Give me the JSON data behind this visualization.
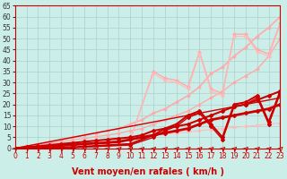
{
  "bg_color": "#cceee8",
  "grid_color": "#aacccc",
  "xlabel": "Vent moyen/en rafales ( km/h )",
  "xlabel_color": "#cc0000",
  "xlabel_fontsize": 7,
  "tick_fontsize": 5.5,
  "x_min": 0,
  "x_max": 23,
  "y_min": 0,
  "y_max": 65,
  "x_ticks": [
    0,
    1,
    2,
    3,
    4,
    5,
    6,
    7,
    8,
    9,
    10,
    11,
    12,
    13,
    14,
    15,
    16,
    17,
    18,
    19,
    20,
    21,
    22,
    23
  ],
  "y_ticks": [
    0,
    5,
    10,
    15,
    20,
    25,
    30,
    35,
    40,
    45,
    50,
    55,
    60,
    65
  ],
  "pink_lines": [
    {
      "x": [
        0,
        1,
        2,
        3,
        4,
        5,
        6,
        7,
        8,
        9,
        10,
        11,
        12,
        13,
        14,
        15,
        16,
        17,
        18,
        19,
        20,
        21,
        22,
        23
      ],
      "y": [
        0,
        0.5,
        1,
        1.5,
        2,
        2.5,
        3,
        3.5,
        4,
        4.5,
        5,
        5.5,
        6,
        6.5,
        7,
        7.5,
        8,
        8.5,
        9,
        9.5,
        10,
        10.5,
        11,
        11.5
      ],
      "color": "#ffbbbb",
      "lw": 0.8
    },
    {
      "x": [
        0,
        1,
        2,
        3,
        4,
        5,
        6,
        7,
        8,
        9,
        10,
        11,
        12,
        13,
        14,
        15,
        16,
        17,
        18,
        19,
        20,
        21,
        22,
        23
      ],
      "y": [
        0,
        0.8,
        1.5,
        2.3,
        3,
        3.8,
        4.5,
        5.3,
        6,
        6.8,
        8,
        9,
        11,
        13,
        15,
        17,
        20,
        23,
        26,
        30,
        33,
        36,
        42,
        50
      ],
      "color": "#ffaaaa",
      "lw": 1.0
    },
    {
      "x": [
        0,
        1,
        2,
        3,
        4,
        5,
        6,
        7,
        8,
        9,
        10,
        11,
        12,
        13,
        14,
        15,
        16,
        17,
        18,
        19,
        20,
        21,
        22,
        23
      ],
      "y": [
        0,
        1,
        2,
        3,
        4,
        5,
        6,
        7,
        8,
        9,
        11,
        13,
        16,
        18,
        21,
        24,
        28,
        34,
        37,
        42,
        46,
        51,
        55,
        60
      ],
      "color": "#ffaaaa",
      "lw": 1.2
    },
    {
      "x": [
        0,
        5,
        10,
        12,
        13,
        14,
        15,
        16,
        17,
        18,
        19,
        20,
        21,
        22,
        23
      ],
      "y": [
        0,
        1.5,
        4,
        35,
        32,
        31,
        28,
        44,
        27,
        25,
        52,
        52,
        45,
        43,
        57
      ],
      "color": "#ffaaaa",
      "lw": 1.0
    },
    {
      "x": [
        0,
        5,
        10,
        12,
        13,
        14,
        15,
        16,
        17,
        18,
        19,
        20,
        21,
        22,
        23
      ],
      "y": [
        0,
        1.5,
        4,
        34,
        31,
        30,
        27,
        43,
        26,
        24,
        51,
        51,
        44,
        42,
        56
      ],
      "color": "#ffbbbb",
      "lw": 0.8
    }
  ],
  "red_lines": [
    {
      "x": [
        0,
        1,
        2,
        3,
        4,
        5,
        6,
        7,
        8,
        9,
        10,
        11,
        12,
        13,
        14,
        15,
        16,
        17,
        18,
        19,
        20,
        21,
        22,
        23
      ],
      "y": [
        0,
        1,
        2,
        3,
        4,
        5,
        6,
        7,
        8,
        9,
        10,
        11,
        12,
        13,
        14,
        15,
        16,
        17,
        18,
        19,
        20,
        21,
        22,
        23
      ],
      "color": "#cc0000",
      "lw": 1.0,
      "marker": false
    },
    {
      "x": [
        0,
        1,
        2,
        3,
        4,
        5,
        6,
        7,
        8,
        9,
        10,
        11,
        12,
        13,
        14,
        15,
        16,
        17,
        18,
        19,
        20,
        21,
        22,
        23
      ],
      "y": [
        0,
        0.5,
        1,
        1.5,
        2,
        2.5,
        3,
        3.5,
        4,
        4.5,
        5,
        6,
        8,
        9,
        10,
        11,
        13,
        15,
        17,
        19,
        20,
        22,
        24,
        26
      ],
      "color": "#cc0000",
      "lw": 1.5,
      "marker": true
    },
    {
      "x": [
        0,
        1,
        2,
        3,
        4,
        5,
        6,
        7,
        8,
        9,
        10,
        11,
        12,
        13,
        14,
        15,
        16,
        17,
        18,
        19,
        20,
        21,
        22,
        23
      ],
      "y": [
        0,
        0.3,
        0.6,
        1,
        1.3,
        1.6,
        2,
        2.3,
        2.6,
        3,
        4,
        5,
        6,
        7,
        8,
        9,
        11,
        13,
        14,
        15,
        16,
        17,
        18,
        20
      ],
      "color": "#cc0000",
      "lw": 2.0,
      "marker": true
    },
    {
      "x": [
        0,
        5,
        10,
        12,
        13,
        14,
        15,
        16,
        17,
        18,
        19,
        20,
        21,
        22,
        23
      ],
      "y": [
        0,
        0.5,
        2,
        6,
        9,
        11,
        15,
        17,
        11,
        5,
        20,
        21,
        24,
        12,
        26
      ],
      "color": "#cc0000",
      "lw": 1.5,
      "marker": true
    },
    {
      "x": [
        0,
        5,
        10,
        12,
        13,
        14,
        15,
        16,
        17,
        18,
        19,
        20,
        21,
        22,
        23
      ],
      "y": [
        0,
        0.3,
        1.5,
        5,
        8,
        10,
        14,
        16,
        10,
        4,
        19,
        20,
        23,
        11,
        25
      ],
      "color": "#cc0000",
      "lw": 1.0,
      "marker": true
    }
  ],
  "arrow_color": "#cc0000"
}
